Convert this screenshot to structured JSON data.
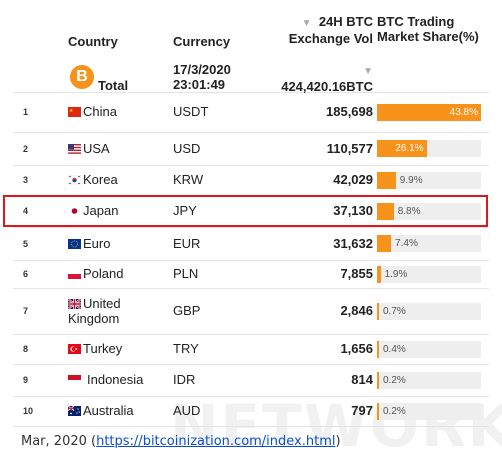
{
  "watermark": "NETWORK",
  "header": {
    "country": "Country",
    "currency": "Currency",
    "volume_line1": "24H BTC",
    "volume_line2": "Exchange Vol",
    "share_line1": "BTC Trading",
    "share_line2": "Market Share(%)",
    "sort_glyph": "▼"
  },
  "summary": {
    "logo_symbol": "B",
    "total_label": "Total",
    "date": "17/3/2020",
    "time": "23:01:49",
    "total_volume": "424,420.16BTC"
  },
  "rows": [
    {
      "rank": "1",
      "country": "China",
      "currency": "USDT",
      "volume": "185,698",
      "share_label": "43.8%",
      "share": 43.8,
      "flag": "china-flag-icon"
    },
    {
      "rank": "2",
      "country": "USA",
      "currency": "USD",
      "volume": "110,577",
      "share_label": "26.1%",
      "share": 26.1,
      "flag": "usa-flag-icon"
    },
    {
      "rank": "3",
      "country": "Korea",
      "currency": "KRW",
      "volume": "42,029",
      "share_label": "9.9%",
      "share": 9.9,
      "flag": "korea-flag-icon"
    },
    {
      "rank": "4",
      "country": "Japan",
      "currency": "JPY",
      "volume": "37,130",
      "share_label": "8.8%",
      "share": 8.8,
      "flag": "japan-flag-icon"
    },
    {
      "rank": "5",
      "country": "Euro",
      "currency": "EUR",
      "volume": "31,632",
      "share_label": "7.4%",
      "share": 7.4,
      "flag": "eu-flag-icon"
    },
    {
      "rank": "6",
      "country": "Poland",
      "currency": "PLN",
      "volume": "7,855",
      "share_label": "1.9%",
      "share": 1.9,
      "flag": "poland-flag-icon"
    },
    {
      "rank": "7",
      "country": "United Kingdom",
      "country_l1": "United",
      "country_l2": "Kingdom",
      "currency": "GBP",
      "volume": "2,846",
      "share_label": "0.7%",
      "share": 0.7,
      "flag": "uk-flag-icon"
    },
    {
      "rank": "8",
      "country": "Turkey",
      "currency": "TRY",
      "volume": "1,656",
      "share_label": "0.4%",
      "share": 0.4,
      "flag": "turkey-flag-icon"
    },
    {
      "rank": "9",
      "country": "Indonesia",
      "currency": "IDR",
      "volume": "814",
      "share_label": "0.2%",
      "share": 0.2,
      "flag": "indonesia-flag-icon"
    },
    {
      "rank": "10",
      "country": "Australia",
      "currency": "AUD",
      "volume": "797",
      "share_label": "0.2%",
      "share": 0.2,
      "flag": "australia-flag-icon"
    }
  ],
  "highlighted_rank": "4",
  "caption": {
    "prefix": "Mar, 2020 (",
    "link": "https://bitcoinization.com/index.html",
    "suffix": ")"
  },
  "colors": {
    "bar": "#f7931a",
    "highlight": "#e0161c",
    "link": "#0b4fcf"
  }
}
